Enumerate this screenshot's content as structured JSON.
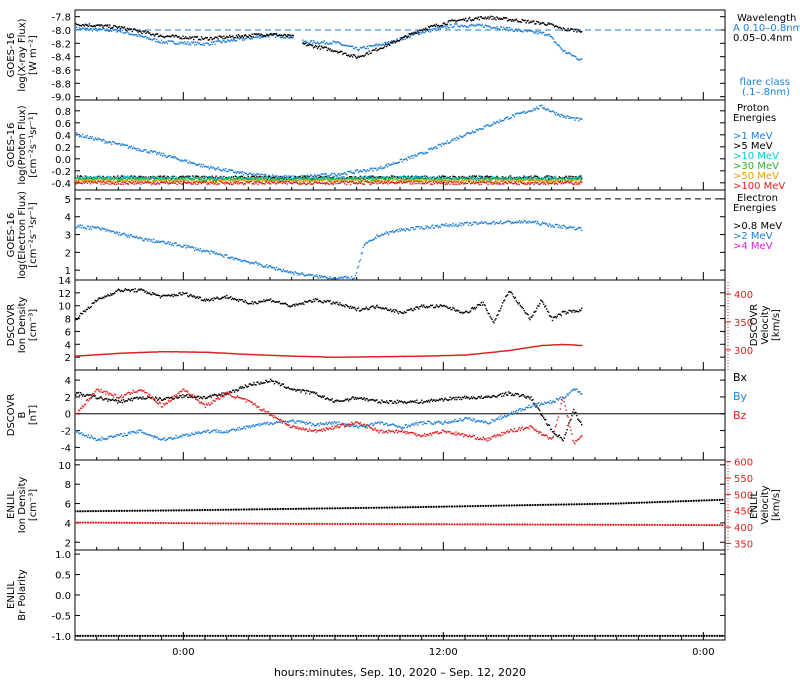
{
  "colors": {
    "black": "#000000",
    "blue": "#1e7fd8",
    "cyan": "#00c8e0",
    "green": "#33b033",
    "orange": "#e8a000",
    "red": "#e02020",
    "magenta": "#e020e0"
  },
  "x_axis": {
    "label": "hours:minutes, Sep. 10, 2020 – Sep. 12, 2020",
    "range_hours": [
      -5,
      25
    ],
    "ticks": [
      {
        "h": 0,
        "label": "0:00"
      },
      {
        "h": 12,
        "label": "12:00"
      },
      {
        "h": 24,
        "label": "0:00"
      }
    ],
    "data_end_hours": 18.4
  },
  "chart_data": [
    {
      "id": "xray",
      "type": "scatter",
      "ylabel": [
        "GOES-16",
        "log(X-ray Flux)",
        "[W m⁻²]"
      ],
      "ylim": [
        -9.05,
        -7.7
      ],
      "yticks": [
        -7.8,
        -8.0,
        -8.2,
        -8.4,
        -8.6,
        -8.8,
        -9.0
      ],
      "ytick_labels": [
        "-7.8",
        "-8.0",
        "-8.2",
        "-8.4",
        "-8.6",
        "-8.8",
        "-9.0"
      ],
      "dashed_level": -8.0,
      "legend": {
        "title": "Wavelength",
        "entries": [
          {
            "label": "0.10–0.8nm",
            "color": "blue",
            "prefix": "A"
          },
          {
            "label": "0.05–0.4nm",
            "color": "black"
          }
        ],
        "extra_line1": "flare class",
        "extra_line2": "(.1–.8nm)"
      },
      "series": [
        {
          "name": "0.10–0.8nm",
          "color": "blue",
          "x": [
            -5,
            -3,
            -1,
            1,
            4,
            5.2,
            5.5,
            7,
            8,
            9.5,
            11,
            12.5,
            14,
            15.5,
            16.8,
            17.5,
            18.4
          ],
          "y": [
            -7.97,
            -8.0,
            -8.17,
            -8.2,
            -8.07,
            -8.1,
            -8.17,
            -8.18,
            -8.28,
            -8.18,
            -8.02,
            -7.92,
            -7.93,
            -8.0,
            -8.05,
            -8.3,
            -8.45
          ]
        },
        {
          "name": "0.05–0.4nm",
          "color": "black",
          "x": [
            -5,
            -3,
            -1,
            1,
            4,
            5.2,
            5.5,
            7,
            8,
            9.5,
            11,
            12.5,
            14,
            15.5,
            16.8,
            17.5,
            18.4
          ],
          "y": [
            -7.9,
            -7.95,
            -8.08,
            -8.12,
            -8.05,
            -8.1,
            -8.2,
            -8.3,
            -8.4,
            -8.2,
            -7.98,
            -7.85,
            -7.8,
            -7.85,
            -7.9,
            -7.98,
            -8.0
          ]
        }
      ]
    },
    {
      "id": "proton",
      "type": "scatter",
      "ylabel": [
        "GOES-16",
        "log(Proton Flux)",
        "[cm⁻²s⁻¹sr⁻¹]"
      ],
      "ylim": [
        -0.52,
        0.98
      ],
      "yticks": [
        -0.4,
        -0.2,
        0.0,
        0.2,
        0.4,
        0.6,
        0.8
      ],
      "ytick_labels": [
        "-0.4",
        "-0.2",
        "0.0",
        "0.2",
        "0.4",
        "0.6",
        "0.8"
      ],
      "legend": {
        "title": "Proton",
        "title2": "Energies",
        "entries": [
          {
            "label": ">1 MeV",
            "color": "blue"
          },
          {
            "label": ">5 MeV",
            "color": "black"
          },
          {
            "label": ">10 MeV",
            "color": "cyan"
          },
          {
            "label": ">30 MeV",
            "color": "green"
          },
          {
            "label": ">50 MeV",
            "color": "orange"
          },
          {
            "label": ">100 MeV",
            "color": "red"
          }
        ]
      },
      "series": [
        {
          "name": ">1 MeV",
          "color": "blue",
          "x": [
            -5,
            -3,
            -1,
            1,
            3,
            5,
            7,
            9,
            11,
            13,
            15,
            16.5,
            17.5,
            18.4
          ],
          "y": [
            0.42,
            0.25,
            0.08,
            -0.12,
            -0.25,
            -0.3,
            -0.25,
            -0.15,
            0.1,
            0.42,
            0.7,
            0.88,
            0.72,
            0.65
          ]
        },
        {
          "name": ">5 MeV",
          "color": "black",
          "x": [
            -5,
            0,
            5,
            10,
            15,
            18.4
          ],
          "y": [
            -0.3,
            -0.3,
            -0.31,
            -0.3,
            -0.3,
            -0.3
          ]
        },
        {
          "name": ">10 MeV",
          "color": "cyan",
          "x": [
            -5,
            0,
            5,
            10,
            15,
            18.4
          ],
          "y": [
            -0.31,
            -0.31,
            -0.32,
            -0.31,
            -0.31,
            -0.31
          ]
        },
        {
          "name": ">30 MeV",
          "color": "green",
          "x": [
            -5,
            0,
            5,
            10,
            15,
            18.4
          ],
          "y": [
            -0.33,
            -0.33,
            -0.33,
            -0.33,
            -0.33,
            -0.33
          ]
        },
        {
          "name": ">50 MeV",
          "color": "orange",
          "x": [
            -5,
            0,
            5,
            10,
            15,
            18.4
          ],
          "y": [
            -0.36,
            -0.36,
            -0.36,
            -0.36,
            -0.36,
            -0.36
          ]
        },
        {
          "name": ">100 MeV",
          "color": "red",
          "x": [
            -5,
            0,
            5,
            10,
            15,
            18.4
          ],
          "y": [
            -0.39,
            -0.39,
            -0.39,
            -0.39,
            -0.39,
            -0.39
          ]
        }
      ]
    },
    {
      "id": "electron",
      "type": "scatter",
      "ylabel": [
        "GOES-16",
        "log(Electron Flux)",
        "[cm⁻²s⁻¹sr⁻¹]"
      ],
      "ylim": [
        0.45,
        5.5
      ],
      "yticks": [
        1,
        2,
        3,
        4,
        5
      ],
      "ytick_labels": [
        "1",
        "2",
        "3",
        "4",
        "5"
      ],
      "dashed_level": 5.0,
      "legend": {
        "title": "Electron",
        "title2": "Energies",
        "entries": [
          {
            "label": ">0.8 MeV",
            "color": "black"
          },
          {
            "label": ">2 MeV",
            "color": "blue"
          },
          {
            "label": ">4 MeV",
            "color": "magenta"
          }
        ]
      },
      "series": [
        {
          "name": ">2 MeV",
          "color": "blue",
          "x": [
            -5,
            -4,
            -3,
            -2,
            -1,
            0,
            1,
            2,
            3,
            4,
            5,
            6,
            7,
            7.9,
            8.3,
            9,
            10,
            12,
            14,
            16,
            17,
            18.4
          ],
          "y": [
            3.5,
            3.4,
            3.1,
            2.8,
            2.6,
            2.4,
            2.1,
            1.8,
            1.5,
            1.2,
            0.9,
            0.7,
            0.6,
            0.6,
            2.4,
            3.0,
            3.3,
            3.55,
            3.7,
            3.75,
            3.55,
            3.35
          ]
        }
      ]
    },
    {
      "id": "dscovr-plasma",
      "type": "scatter",
      "ylabel": [
        "DSCOVR",
        "Ion Density",
        "[cm⁻³]"
      ],
      "ylim": [
        0,
        14
      ],
      "yticks": [
        2,
        4,
        6,
        8,
        10,
        12,
        14
      ],
      "ytick_labels": [
        "2",
        "4",
        "6",
        "8",
        "10",
        "12",
        "14"
      ],
      "right_axis": {
        "label": [
          "DSCOVR",
          "Velocity",
          "[km/s]"
        ],
        "color": "red",
        "ylim": [
          264,
          425
        ],
        "ticks": [
          300,
          350,
          400
        ],
        "tick_labels": [
          "300",
          "350",
          "400"
        ]
      },
      "series": [
        {
          "name": "Ion Density",
          "color": "black",
          "axis": "left",
          "x": [
            -5,
            -4,
            -3,
            -2,
            -1,
            0,
            1,
            2,
            3,
            4,
            5,
            6,
            7,
            8,
            9,
            10,
            11,
            12,
            13,
            13.8,
            14.3,
            15,
            16,
            16.5,
            17,
            17.5,
            18.4
          ],
          "y": [
            8,
            11,
            12.5,
            12.5,
            11.5,
            12,
            11,
            11.5,
            10.5,
            11,
            10,
            11,
            10.5,
            9.5,
            10,
            9,
            10,
            10,
            9,
            10.5,
            7.5,
            12.5,
            8,
            11,
            8,
            9,
            9.5
          ]
        },
        {
          "name": "Velocity",
          "color": "red",
          "axis": "right",
          "x": [
            -5,
            -3,
            -1,
            1,
            3,
            5,
            7,
            9,
            11,
            13,
            15,
            16.5,
            17.5,
            18.4
          ],
          "y": [
            290,
            295,
            298,
            297,
            293,
            290,
            288,
            289,
            290,
            292,
            300,
            309,
            311,
            309
          ]
        }
      ]
    },
    {
      "id": "dscovr-mag",
      "type": "line",
      "ylabel": [
        "DSCOVR",
        "B",
        "[nT]"
      ],
      "ylim": [
        -5.5,
        5.2
      ],
      "yticks": [
        -4,
        -2,
        0,
        2,
        4
      ],
      "ytick_labels": [
        "-4",
        "-2",
        "0",
        "2",
        "4"
      ],
      "zero_line": true,
      "legend": {
        "entries": [
          {
            "label": "Bx",
            "color": "black"
          },
          {
            "label": "By",
            "color": "blue"
          },
          {
            "label": "Bz",
            "color": "red"
          }
        ]
      },
      "series": [
        {
          "name": "Bx",
          "color": "black",
          "x": [
            -5,
            -4,
            -3,
            -2,
            -1,
            0,
            1,
            2,
            3,
            4,
            5,
            6,
            7,
            8,
            9,
            10,
            11,
            12,
            13,
            14,
            15,
            16,
            17,
            17.5,
            18,
            18.4
          ],
          "y": [
            2.5,
            2.0,
            1.5,
            2.0,
            1.8,
            2.2,
            2.0,
            2.5,
            3.5,
            4.0,
            3.0,
            2.5,
            1.5,
            2.0,
            1.5,
            1.5,
            1.5,
            1.8,
            2.0,
            2.0,
            2.5,
            2.0,
            -2.0,
            -3.0,
            0.5,
            -1.5
          ]
        },
        {
          "name": "By",
          "color": "blue",
          "x": [
            -5,
            -4,
            -3,
            -2,
            -1,
            0,
            1,
            2,
            3,
            4,
            5,
            6,
            7,
            8,
            9,
            10,
            11,
            12,
            13,
            14,
            15,
            16,
            17,
            17.5,
            18,
            18.4
          ],
          "y": [
            -2.0,
            -3.0,
            -2.5,
            -2.0,
            -3.0,
            -2.5,
            -2.0,
            -2.0,
            -1.5,
            -1.0,
            -0.8,
            -1.2,
            -1.0,
            -1.5,
            -1.0,
            -1.5,
            -1.0,
            -1.0,
            -0.5,
            -1.0,
            0.0,
            1.0,
            1.5,
            2.0,
            3.0,
            2.5
          ]
        },
        {
          "name": "Bz",
          "color": "red",
          "x": [
            -5,
            -4,
            -3,
            -2,
            -1,
            0,
            1,
            2,
            3,
            4,
            5,
            6,
            7,
            8,
            9,
            10,
            11,
            12,
            13,
            14,
            15,
            16,
            17,
            17.5,
            18,
            18.4
          ],
          "y": [
            0.0,
            3.0,
            2.0,
            3.0,
            1.0,
            3.0,
            1.0,
            2.5,
            1.5,
            0.0,
            -1.5,
            -2.0,
            -1.5,
            -1.0,
            -2.0,
            -2.0,
            -2.5,
            -2.0,
            -2.5,
            -3.0,
            -2.0,
            -1.5,
            -3.0,
            2.0,
            -3.5,
            -2.5
          ]
        }
      ]
    },
    {
      "id": "enlil-plasma",
      "type": "line",
      "ylabel": [
        "ENLIL",
        "Ion Density",
        "[cm⁻³]"
      ],
      "ylim": [
        1.2,
        10.5
      ],
      "yticks": [
        2,
        4,
        6,
        8,
        10
      ],
      "ytick_labels": [
        "2",
        "4",
        "6",
        "8",
        "10"
      ],
      "right_axis": {
        "label": [
          "ENLIL",
          "Velocity",
          "[km/s]"
        ],
        "color": "red",
        "ylim": [
          330,
          605
        ],
        "ticks": [
          350,
          400,
          450,
          500,
          550,
          600
        ],
        "tick_labels": [
          "350",
          "400",
          "450",
          "500",
          "550",
          "600"
        ]
      },
      "series": [
        {
          "name": "Ion Density",
          "color": "black",
          "axis": "left",
          "x": [
            -5,
            0,
            5,
            10,
            15,
            20,
            25
          ],
          "y": [
            5.2,
            5.3,
            5.45,
            5.6,
            5.8,
            6.0,
            6.4
          ]
        },
        {
          "name": "Velocity",
          "color": "red",
          "axis": "right",
          "x": [
            -5,
            0,
            5,
            10,
            15,
            20,
            25
          ],
          "y": [
            414,
            412,
            410,
            409,
            408,
            407,
            406
          ]
        }
      ]
    },
    {
      "id": "enlil-polarity",
      "type": "line",
      "ylabel": [
        "ENLIL",
        "Br Polarity"
      ],
      "ylim": [
        -1.1,
        1.1
      ],
      "yticks": [
        -1.0,
        -0.5,
        0.0,
        0.5,
        1.0
      ],
      "ytick_labels": [
        "-1.0",
        "-0.5",
        "0.0",
        "0.5",
        "1.0"
      ],
      "series": [
        {
          "name": "Br Polarity",
          "color": "black",
          "x": [
            -5,
            25
          ],
          "y": [
            -1.0,
            -1.0
          ]
        }
      ]
    }
  ]
}
